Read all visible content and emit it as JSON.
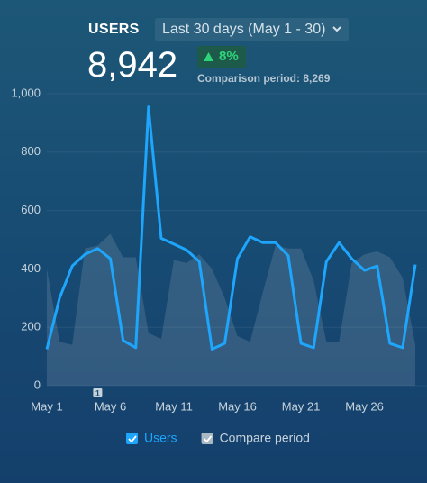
{
  "header": {
    "title": "USERS",
    "date_range": "Last 30 days (May 1 - 30)",
    "total": "8,942",
    "change": "8%",
    "comparison": "Comparison period: 8,269"
  },
  "chart_data": {
    "type": "line",
    "categories": [
      "May 1",
      null,
      null,
      null,
      null,
      "May 6",
      null,
      null,
      null,
      null,
      "May 11",
      null,
      null,
      null,
      null,
      "May 16",
      null,
      null,
      null,
      null,
      "May 21",
      null,
      null,
      null,
      null,
      "May 26",
      null,
      null,
      null,
      null
    ],
    "series": [
      {
        "name": "Users",
        "color": "#1ea5fc",
        "kind": "line",
        "values": [
          125,
          300,
          410,
          450,
          470,
          435,
          155,
          130,
          955,
          505,
          485,
          465,
          425,
          125,
          145,
          435,
          510,
          490,
          490,
          445,
          145,
          130,
          425,
          490,
          435,
          395,
          410,
          145,
          130,
          415
        ]
      },
      {
        "name": "Compare period",
        "color": "#b8c4cc",
        "kind": "area",
        "values": [
          400,
          150,
          140,
          470,
          480,
          520,
          440,
          440,
          180,
          160,
          430,
          420,
          450,
          400,
          300,
          170,
          150,
          320,
          480,
          470,
          470,
          360,
          150,
          150,
          420,
          450,
          460,
          440,
          370,
          140
        ]
      }
    ],
    "ylim": [
      0,
      1000
    ],
    "yticks": [
      0,
      200,
      400,
      600,
      800,
      {
        "value": 1000,
        "label": "1,000"
      }
    ],
    "grid": true,
    "annotation": "1"
  }
}
